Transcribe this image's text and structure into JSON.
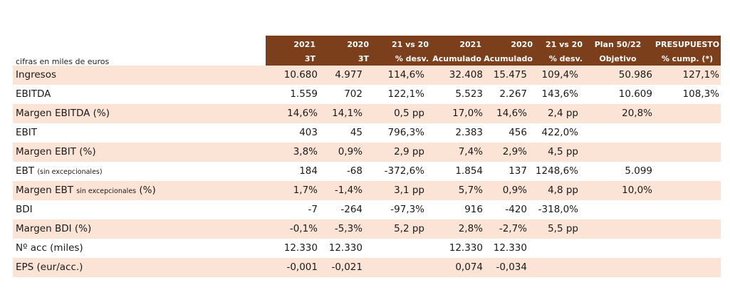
{
  "caption": "cifras en miles de euros",
  "columns": [
    {
      "l1": "2021",
      "l2": "3T"
    },
    {
      "l1": "2020",
      "l2": "3T"
    },
    {
      "l1": "21 vs 20",
      "l2": "% desv."
    },
    {
      "l1": "2021",
      "l2": "Acumulado"
    },
    {
      "l1": "2020",
      "l2": "Acumulado"
    },
    {
      "l1": "21 vs 20",
      "l2": "% desv."
    },
    {
      "l1": "Plan 50/22",
      "l2": "Objetivo"
    },
    {
      "l1": "PRESUPUESTO",
      "l2": "% cump.  (*)"
    }
  ],
  "rows": [
    {
      "label": "Ingresos",
      "sub": "",
      "after": "",
      "values": [
        "10.680",
        "4.977",
        "114,6%",
        "32.408",
        "15.475",
        "109,4%",
        "50.986",
        "127,1%"
      ]
    },
    {
      "label": "EBITDA",
      "sub": "",
      "after": "",
      "values": [
        "1.559",
        "702",
        "122,1%",
        "5.523",
        "2.267",
        "143,6%",
        "10.609",
        "108,3%"
      ]
    },
    {
      "label": "Margen EBITDA (%)",
      "sub": "",
      "after": "",
      "values": [
        "14,6%",
        "14,1%",
        "0,5 pp",
        "17,0%",
        "14,6%",
        "2,4 pp",
        "20,8%",
        ""
      ]
    },
    {
      "label": "EBIT",
      "sub": "",
      "after": "",
      "values": [
        "403",
        "45",
        "796,3%",
        "2.383",
        "456",
        "422,0%",
        "",
        ""
      ]
    },
    {
      "label": "Margen EBIT (%)",
      "sub": "",
      "after": "",
      "values": [
        "3,8%",
        "0,9%",
        "2,9 pp",
        "7,4%",
        "2,9%",
        "4,5 pp",
        "",
        ""
      ]
    },
    {
      "label": "EBT ",
      "sub": "(sin excepcionales)",
      "after": "",
      "values": [
        "184",
        "-68",
        "-372,6%",
        "1.854",
        "137",
        "1248,6%",
        "5.099",
        ""
      ]
    },
    {
      "label": "Margen EBT ",
      "sub": "sin excepcionales",
      "after": " (%)",
      "values": [
        "1,7%",
        "-1,4%",
        "3,1 pp",
        "5,7%",
        "0,9%",
        "4,8 pp",
        "10,0%",
        ""
      ]
    },
    {
      "label": "BDI",
      "sub": "",
      "after": "",
      "values": [
        "-7",
        "-264",
        "-97,3%",
        "916",
        "-420",
        "-318,0%",
        "",
        ""
      ]
    },
    {
      "label": "Margen BDI (%)",
      "sub": "",
      "after": "",
      "values": [
        "-0,1%",
        "-5,3%",
        "5,2 pp",
        "2,8%",
        "-2,7%",
        "5,5 pp",
        "",
        ""
      ]
    },
    {
      "label": "Nº acc (miles)",
      "sub": "",
      "after": "",
      "values": [
        "12.330",
        "12.330",
        "",
        "12.330",
        "12.330",
        "",
        "",
        ""
      ]
    },
    {
      "label": "EPS (eur/acc.)",
      "sub": "",
      "after": "",
      "values": [
        "-0,001",
        "-0,021",
        "",
        "0,074",
        "-0,034",
        "",
        "",
        ""
      ]
    }
  ]
}
